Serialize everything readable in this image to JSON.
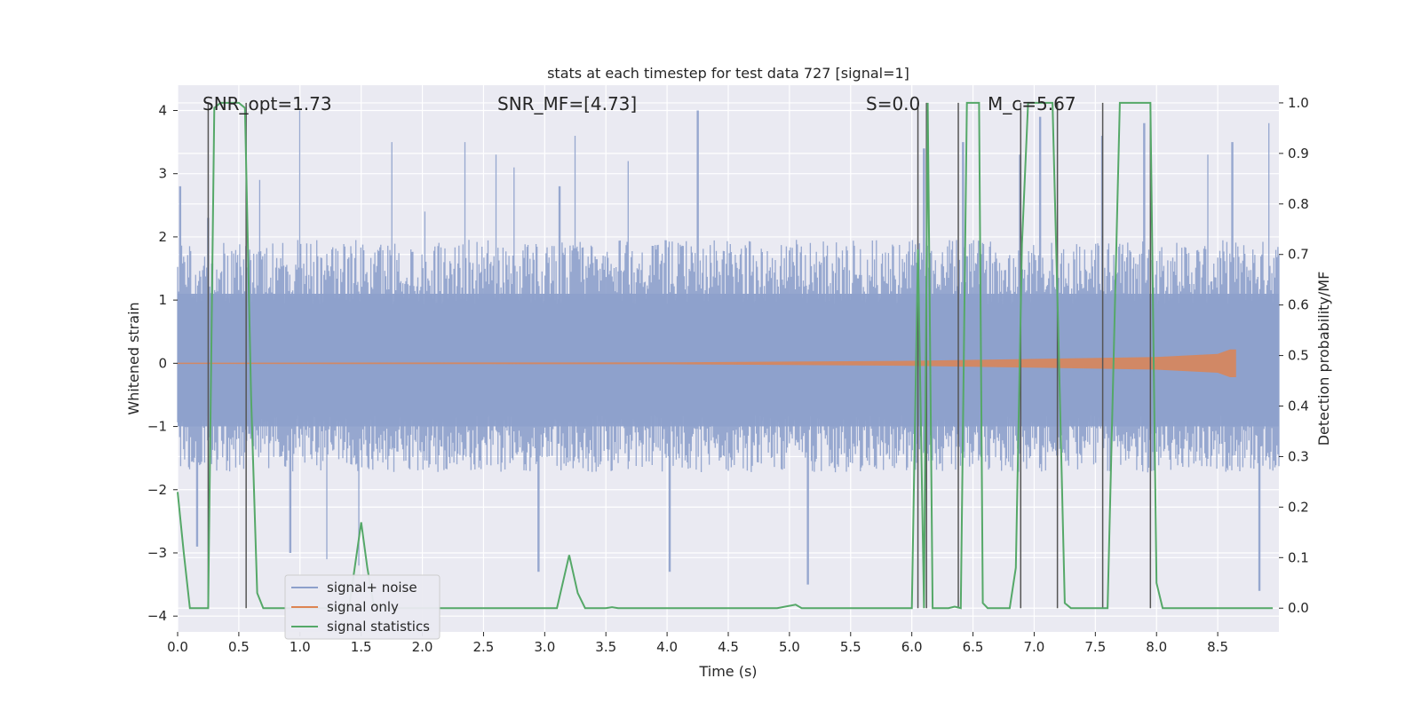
{
  "chart_data": {
    "type": "line",
    "title": "stats at each timestep for test data 727 [signal=1]",
    "xlabel": "Time (s)",
    "ylabel_left": "Whitened strain",
    "ylabel_right": "Detection probability/MF",
    "xlim": [
      0.0,
      9.0
    ],
    "ylim_left": [
      -4.25,
      4.4
    ],
    "ylim_right": [
      -0.047,
      1.035
    ],
    "x_ticks": [
      "0.0",
      "0.5",
      "1.0",
      "1.5",
      "2.0",
      "2.5",
      "3.0",
      "3.5",
      "4.0",
      "4.5",
      "5.0",
      "5.5",
      "6.0",
      "6.5",
      "7.0",
      "7.5",
      "8.0",
      "8.5"
    ],
    "y_ticks_left": [
      "−4",
      "−3",
      "−2",
      "−1",
      "0",
      "1",
      "2",
      "3",
      "4"
    ],
    "y_ticks_right": [
      "0.0",
      "0.1",
      "0.2",
      "0.3",
      "0.4",
      "0.5",
      "0.6",
      "0.7",
      "0.8",
      "0.9",
      "1.0"
    ],
    "annotations": [
      {
        "text": "SNR_opt=1.73",
        "x": 0.2
      },
      {
        "text": "SNR_MF=[4.73]",
        "x": 2.6
      },
      {
        "text": "S=0.0",
        "x": 5.6
      },
      {
        "text": "M_c=5.67",
        "x": 6.6
      }
    ],
    "legend": {
      "position": "lower-left",
      "entries": [
        {
          "label": "signal+ noise",
          "color": "#8da0cb"
        },
        {
          "label": "signal only",
          "color": "#dd8452"
        },
        {
          "label": "signal statistics",
          "color": "#55a868"
        }
      ]
    },
    "colors": {
      "noise": "#8da0cb",
      "signal": "#dd8452",
      "stat": "#55a868",
      "vlines": "#555555",
      "background": "#eaeaf2",
      "grid": "#ffffff"
    },
    "noise_envelope": {
      "typical_upper": 1.7,
      "typical_lower": -1.5,
      "peaks": [
        {
          "x": 0.02,
          "y": 2.8
        },
        {
          "x": 0.16,
          "y": -2.9
        },
        {
          "x": 0.25,
          "y": 2.3
        },
        {
          "x": 0.67,
          "y": 2.9
        },
        {
          "x": 0.92,
          "y": -3.0
        },
        {
          "x": 1.0,
          "y": 4.0
        },
        {
          "x": 1.22,
          "y": -3.1
        },
        {
          "x": 1.48,
          "y": -3.2
        },
        {
          "x": 1.75,
          "y": 3.5
        },
        {
          "x": 2.02,
          "y": 2.4
        },
        {
          "x": 2.35,
          "y": 3.5
        },
        {
          "x": 2.6,
          "y": 3.3
        },
        {
          "x": 2.75,
          "y": 3.1
        },
        {
          "x": 2.95,
          "y": -3.3
        },
        {
          "x": 3.12,
          "y": 2.8
        },
        {
          "x": 3.25,
          "y": 3.6
        },
        {
          "x": 3.68,
          "y": 3.2
        },
        {
          "x": 4.02,
          "y": -3.3
        },
        {
          "x": 4.25,
          "y": 4.0
        },
        {
          "x": 5.15,
          "y": -3.5
        },
        {
          "x": 6.1,
          "y": 3.4
        },
        {
          "x": 6.42,
          "y": 3.5
        },
        {
          "x": 6.88,
          "y": 3.3
        },
        {
          "x": 7.05,
          "y": 3.9
        },
        {
          "x": 7.55,
          "y": 3.6
        },
        {
          "x": 7.9,
          "y": 3.8
        },
        {
          "x": 8.42,
          "y": 3.3
        },
        {
          "x": 8.62,
          "y": 3.5
        },
        {
          "x": 8.84,
          "y": -3.6
        },
        {
          "x": 8.92,
          "y": 3.8
        }
      ]
    },
    "signal_only": {
      "x": [
        0.0,
        4.0,
        6.0,
        7.0,
        8.0,
        8.5,
        8.6,
        8.65
      ],
      "amplitude": [
        0.01,
        0.015,
        0.04,
        0.07,
        0.1,
        0.15,
        0.22,
        0.22
      ]
    },
    "signal_statistics": {
      "x": [
        0.0,
        0.05,
        0.1,
        0.15,
        0.2,
        0.25,
        0.3,
        0.35,
        0.4,
        0.45,
        0.5,
        0.55,
        0.6,
        0.65,
        0.7,
        1.0,
        1.4,
        1.5,
        1.55,
        1.6,
        1.7,
        2.0,
        2.5,
        3.0,
        3.1,
        3.2,
        3.27,
        3.33,
        3.5,
        3.55,
        3.6,
        4.0,
        4.5,
        4.9,
        5.05,
        5.1,
        5.5,
        6.0,
        6.05,
        6.1,
        6.13,
        6.17,
        6.2,
        6.25,
        6.3,
        6.35,
        6.4,
        6.45,
        6.5,
        6.55,
        6.58,
        6.62,
        6.7,
        6.8,
        6.85,
        6.9,
        6.95,
        7.0,
        7.1,
        7.15,
        7.2,
        7.25,
        7.3,
        7.4,
        7.5,
        7.55,
        7.6,
        7.7,
        7.8,
        7.9,
        7.95,
        8.0,
        8.05,
        8.1,
        8.5,
        8.95
      ],
      "y": [
        0.23,
        0.11,
        0.0,
        0.0,
        0.0,
        0.0,
        0.99,
        1.0,
        1.0,
        1.0,
        1.0,
        0.99,
        0.42,
        0.03,
        0.0,
        0.0,
        0.0,
        0.17,
        0.08,
        0.01,
        0.0,
        0.0,
        0.0,
        0.0,
        0.0,
        0.105,
        0.03,
        0.0,
        0.0,
        0.002,
        0.0,
        0.0,
        0.0,
        0.0,
        0.007,
        0.0,
        0.0,
        0.0,
        0.71,
        0.0,
        1.0,
        0.0,
        0.0,
        0.0,
        0.0,
        0.003,
        0.0,
        1.0,
        1.0,
        1.0,
        0.01,
        0.0,
        0.0,
        0.0,
        0.08,
        0.72,
        1.0,
        1.0,
        1.0,
        1.0,
        0.52,
        0.01,
        0.0,
        0.0,
        0.0,
        0.0,
        0.0,
        1.0,
        1.0,
        1.0,
        1.0,
        0.05,
        0.0,
        0.0,
        0.0,
        0.0
      ]
    },
    "vlines_x": [
      0.25,
      0.56,
      6.05,
      6.12,
      6.38,
      6.89,
      7.19,
      7.56,
      7.95
    ]
  }
}
